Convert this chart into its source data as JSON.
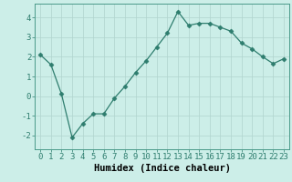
{
  "x": [
    0,
    1,
    2,
    3,
    4,
    5,
    6,
    7,
    8,
    9,
    10,
    11,
    12,
    13,
    14,
    15,
    16,
    17,
    18,
    19,
    20,
    21,
    22,
    23
  ],
  "y": [
    2.1,
    1.6,
    0.1,
    -2.1,
    -1.4,
    -0.9,
    -0.9,
    -0.1,
    0.5,
    1.2,
    1.8,
    2.5,
    3.2,
    4.3,
    3.6,
    3.7,
    3.7,
    3.5,
    3.3,
    2.7,
    2.4,
    2.0,
    1.65,
    1.9
  ],
  "line_color": "#2e7d6e",
  "marker": "D",
  "marker_size": 2.5,
  "bg_color": "#cceee8",
  "grid_color": "#b0d4ce",
  "xlabel": "Humidex (Indice chaleur)",
  "xlim": [
    -0.5,
    23.5
  ],
  "ylim": [
    -2.7,
    4.7
  ],
  "yticks": [
    -2,
    -1,
    0,
    1,
    2,
    3,
    4
  ],
  "xticks": [
    0,
    1,
    2,
    3,
    4,
    5,
    6,
    7,
    8,
    9,
    10,
    11,
    12,
    13,
    14,
    15,
    16,
    17,
    18,
    19,
    20,
    21,
    22,
    23
  ],
  "xtick_labels": [
    "0",
    "1",
    "2",
    "3",
    "4",
    "5",
    "6",
    "7",
    "8",
    "9",
    "10",
    "11",
    "12",
    "13",
    "14",
    "15",
    "16",
    "17",
    "18",
    "19",
    "20",
    "21",
    "22",
    "23"
  ],
  "label_fontsize": 7.5,
  "tick_fontsize": 6.5
}
